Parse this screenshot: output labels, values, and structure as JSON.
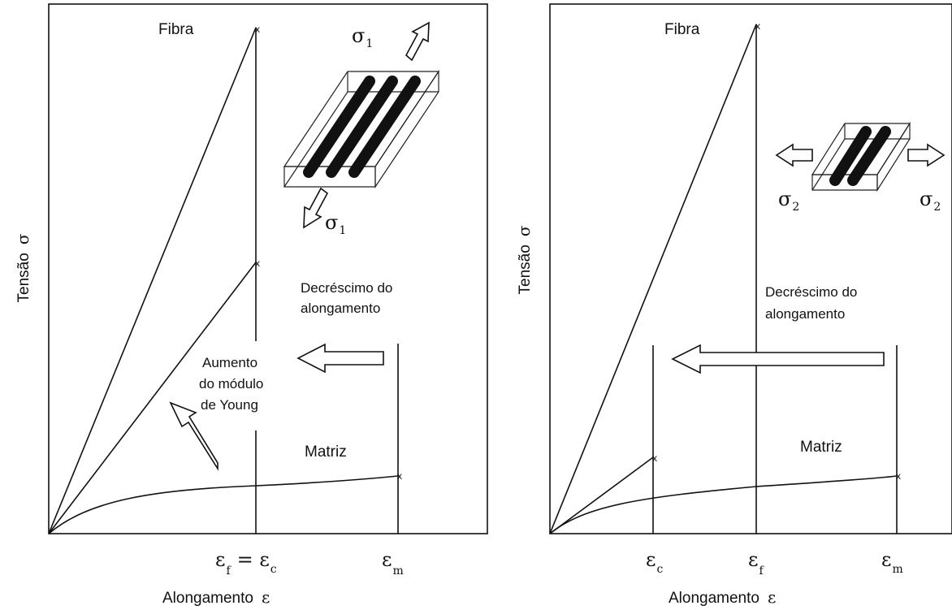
{
  "left": {
    "y_axis_label": "Tensão",
    "y_axis_symbol": "σ",
    "x_axis_label": "Alongamento",
    "x_axis_symbol": "ε",
    "fiber_label": "Fibra",
    "matrix_label": "Matriz",
    "stress_symbol": "σ",
    "stress_sub": "1",
    "annot_decrease": [
      "Decréscimo do",
      "alongamento"
    ],
    "annot_modulus": [
      "Aumento",
      "do módulo",
      "de Young"
    ],
    "tick_ef_c": {
      "sym": "ε",
      "sub": "f",
      "eq": "= ε",
      "sub2": "c"
    },
    "tick_em": {
      "sym": "ε",
      "sub": "m"
    }
  },
  "right": {
    "y_axis_label": "Tensão",
    "y_axis_symbol": "σ",
    "x_axis_label": "Alongamento",
    "x_axis_symbol": "ε",
    "fiber_label": "Fibra",
    "matrix_label": "Matriz",
    "stress_symbol": "σ",
    "stress_sub": "2",
    "annot_decrease": [
      "Decréscimo do",
      "alongamento"
    ],
    "tick_ec": {
      "sym": "ε",
      "sub": "c"
    },
    "tick_ef": {
      "sym": "ε",
      "sub": "f"
    },
    "tick_em": {
      "sym": "ε",
      "sub": "m"
    }
  }
}
